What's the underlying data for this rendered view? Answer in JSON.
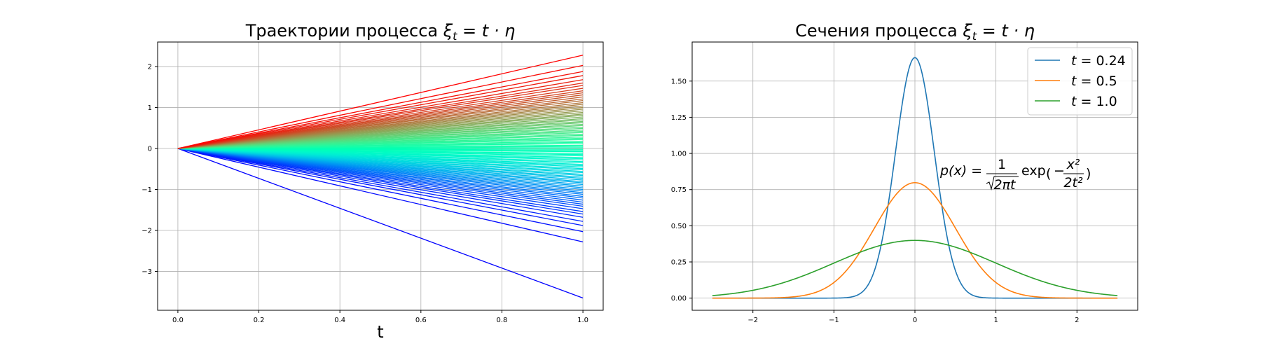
{
  "chart_data": [
    {
      "type": "line",
      "title_text": "Траектории процесса",
      "title_math": [
        "ξ",
        "t",
        " = t · η"
      ],
      "xlabel": "t",
      "ylabel": "",
      "xlim": [
        -0.05,
        1.05
      ],
      "ylim": [
        -3.95,
        2.6
      ],
      "xticks": [
        0.0,
        0.2,
        0.4,
        0.6,
        0.8,
        1.0
      ],
      "xtick_labels": [
        "0.0",
        "0.2",
        "0.4",
        "0.6",
        "0.8",
        "1.0"
      ],
      "yticks": [
        -3,
        -2,
        -1,
        0,
        1,
        2
      ],
      "ytick_labels": [
        "−3",
        "−2",
        "−1",
        "0",
        "1",
        "2"
      ],
      "grid": true,
      "colormap": "rainbow",
      "x": [
        0.0,
        1.0
      ],
      "eta_values": [
        -3.65,
        -2.28,
        -2.03,
        -1.88,
        -1.78,
        -1.68,
        -1.6,
        -1.54,
        -1.47,
        -1.41,
        -1.36,
        -1.31,
        -1.26,
        -1.21,
        -1.17,
        -1.12,
        -1.08,
        -1.04,
        -1.0,
        -0.96,
        -0.92,
        -0.88,
        -0.84,
        -0.81,
        -0.77,
        -0.73,
        -0.7,
        -0.66,
        -0.63,
        -0.59,
        -0.56,
        -0.52,
        -0.49,
        -0.45,
        -0.42,
        -0.39,
        -0.35,
        -0.32,
        -0.28,
        -0.25,
        -0.22,
        -0.18,
        -0.15,
        -0.12,
        -0.08,
        -0.05,
        -0.02,
        0.02,
        0.05,
        0.08,
        0.12,
        0.15,
        0.18,
        0.22,
        0.25,
        0.28,
        0.32,
        0.35,
        0.39,
        0.42,
        0.45,
        0.49,
        0.52,
        0.56,
        0.59,
        0.63,
        0.66,
        0.7,
        0.73,
        0.77,
        0.81,
        0.84,
        0.88,
        0.92,
        0.96,
        1.0,
        1.04,
        1.08,
        1.12,
        1.17,
        1.21,
        1.26,
        1.31,
        1.36,
        1.41,
        1.47,
        1.54,
        1.6,
        1.68,
        1.78,
        1.88,
        2.03,
        2.28
      ]
    },
    {
      "type": "line",
      "title_text": "Сечения процесса",
      "title_math": [
        "ξ",
        "t",
        " = t · η"
      ],
      "xlabel": "",
      "ylabel": "",
      "xlim": [
        -2.75,
        2.75
      ],
      "ylim": [
        -0.084,
        1.77
      ],
      "xticks": [
        -2,
        -1,
        0,
        1,
        2
      ],
      "xtick_labels": [
        "−2",
        "−1",
        "0",
        "1",
        "2"
      ],
      "yticks": [
        0.0,
        0.25,
        0.5,
        0.75,
        1.0,
        1.25,
        1.5
      ],
      "ytick_labels": [
        "0.00",
        "0.25",
        "0.50",
        "0.75",
        "1.00",
        "1.25",
        "1.50"
      ],
      "grid": true,
      "legend_position": "upper-right",
      "x_range": [
        -2.5,
        2.5
      ],
      "series": [
        {
          "name": "t = 0.24",
          "t": 0.24,
          "color": "#1f77b4"
        },
        {
          "name": "t = 0.5",
          "t": 0.5,
          "color": "#ff7f0e"
        },
        {
          "name": "t = 1.0",
          "t": 1.0,
          "color": "#2ca02c"
        }
      ],
      "formula": {
        "lhs": "p(x) =",
        "numerator": "1",
        "denominator": "2πt",
        "exp": "exp",
        "inner_numerator": "x²",
        "inner_denominator": "2t²"
      }
    }
  ]
}
